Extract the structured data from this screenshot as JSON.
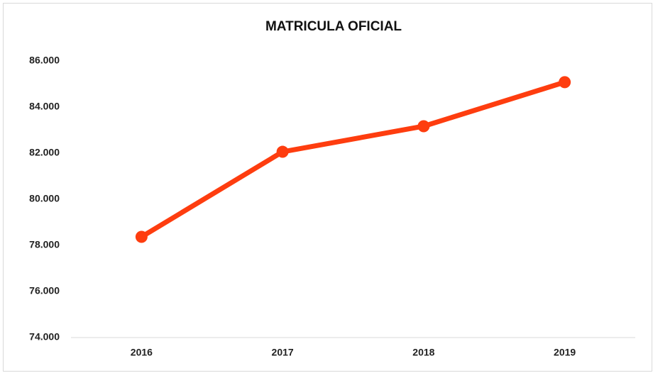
{
  "chart_data": {
    "type": "line",
    "title": "MATRICULA OFICIAL",
    "categories": [
      "2016",
      "2017",
      "2018",
      "2019"
    ],
    "series": [
      {
        "name": "MATRICULA OFICIAL",
        "color": "#fe3d0f",
        "values": [
          78370,
          82060,
          83170,
          85080
        ]
      }
    ],
    "ylim": [
      74000,
      86000
    ],
    "yticks": [
      {
        "value": 74000,
        "label": "74.000"
      },
      {
        "value": 76000,
        "label": "76.000"
      },
      {
        "value": 78000,
        "label": "78.000"
      },
      {
        "value": 80000,
        "label": "80.000"
      },
      {
        "value": 82000,
        "label": "82.000"
      },
      {
        "value": 84000,
        "label": "84.000"
      },
      {
        "value": 86000,
        "label": "86.000"
      }
    ],
    "grid": false,
    "legend": false
  }
}
